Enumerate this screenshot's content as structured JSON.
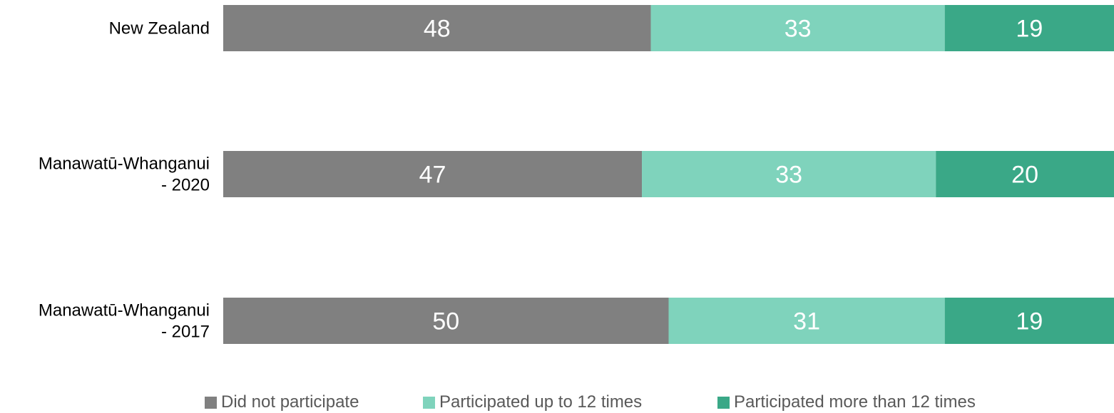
{
  "chart_data": {
    "type": "bar",
    "orientation": "horizontal",
    "stacked": true,
    "categories": [
      [
        "New Zealand"
      ],
      [
        "Manawatū-Whanganui",
        "- 2020"
      ],
      [
        "Manawatū-Whanganui",
        "- 2017"
      ]
    ],
    "series": [
      {
        "name": "Did not participate",
        "color": "#808080",
        "values": [
          48,
          47,
          50
        ]
      },
      {
        "name": "Participated up to 12 times",
        "color": "#7fd3bc",
        "values": [
          33,
          33,
          31
        ]
      },
      {
        "name": "Participated more than 12 times",
        "color": "#3aa887",
        "values": [
          19,
          20,
          19
        ]
      }
    ],
    "xlim": [
      0,
      100
    ],
    "grid": false,
    "legend_position": "bottom"
  }
}
